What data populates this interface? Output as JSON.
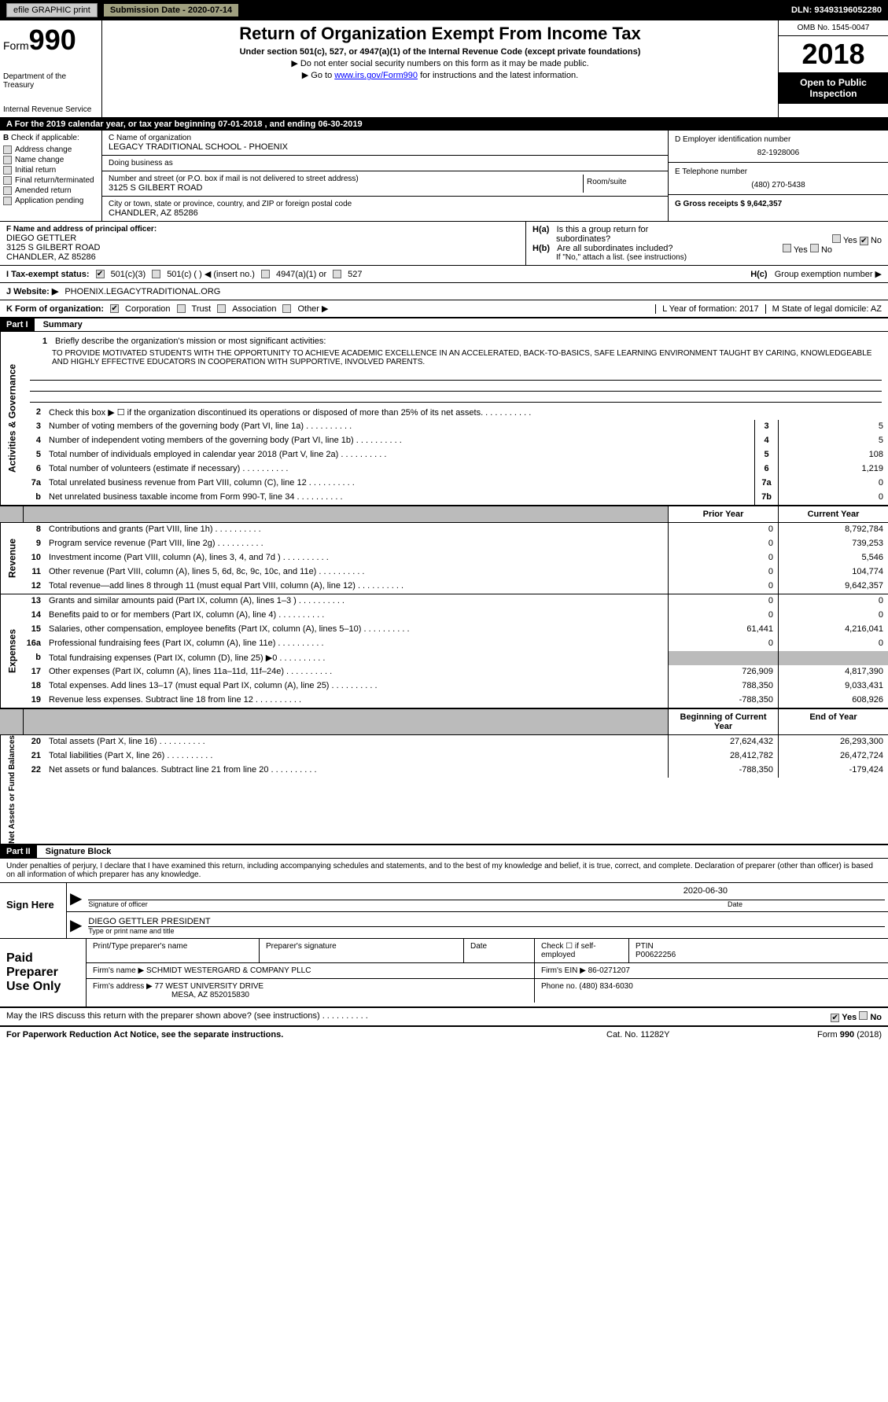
{
  "topbar": {
    "efile": "efile GRAPHIC print",
    "sub_label": "Submission Date - 2020-07-14",
    "dln": "DLN: 93493196052280"
  },
  "header": {
    "form_prefix": "Form",
    "form_num": "990",
    "dept": "Department of the Treasury",
    "irs": "Internal Revenue Service",
    "title": "Return of Organization Exempt From Income Tax",
    "sub1": "Under section 501(c), 527, or 4947(a)(1) of the Internal Revenue Code (except private foundations)",
    "sub2": "▶ Do not enter social security numbers on this form as it may be made public.",
    "sub3_pre": "▶ Go to ",
    "sub3_link": "www.irs.gov/Form990",
    "sub3_post": " for instructions and the latest information.",
    "omb": "OMB No. 1545-0047",
    "year": "2018",
    "open1": "Open to Public",
    "open2": "Inspection"
  },
  "row_a": "A   For the 2019 calendar year, or tax year beginning 07-01-2018         , and ending 06-30-2019",
  "col_b": {
    "label": "Check if applicable:",
    "items": [
      "Address change",
      "Name change",
      "Initial return",
      "Final return/terminated",
      "Amended return",
      "Application pending"
    ]
  },
  "org": {
    "c_label": "C Name of organization",
    "name": "LEGACY TRADITIONAL SCHOOL - PHOENIX",
    "dba_label": "Doing business as",
    "addr_label": "Number and street (or P.O. box if mail is not delivered to street address)",
    "addr": "3125 S GILBERT ROAD",
    "room_label": "Room/suite",
    "city_label": "City or town, state or province, country, and ZIP or foreign postal code",
    "city": "CHANDLER, AZ  85286"
  },
  "right": {
    "d_label": "D Employer identification number",
    "ein": "82-1928006",
    "e_label": "E Telephone number",
    "phone": "(480) 270-5438",
    "g_label": "G Gross receipts $ 9,642,357"
  },
  "f": {
    "label": "F  Name and address of principal officer:",
    "name": "DIEGO GETTLER",
    "addr1": "3125 S GILBERT ROAD",
    "addr2": "CHANDLER, AZ  85286"
  },
  "h": {
    "ha": "H(a)",
    "ha_text": "Is this a group return for",
    "ha_text2": "subordinates?",
    "hb": "H(b)",
    "hb_text": "Are all subordinates included?",
    "hb_note": "If \"No,\" attach a list. (see instructions)",
    "hc": "H(c)",
    "hc_text": "Group exemption number ▶",
    "yes": "Yes",
    "no": "No"
  },
  "tax": {
    "i_label": "I     Tax-exempt status:",
    "c501c3": "501(c)(3)",
    "c501c": "501(c) (  ) ◀ (insert no.)",
    "c4947": "4947(a)(1) or",
    "c527": "527",
    "j_label": "J   Website: ▶",
    "website": "PHOENIX.LEGACYTRADITIONAL.ORG"
  },
  "k": {
    "label": "K Form of organization:",
    "corp": "Corporation",
    "trust": "Trust",
    "assoc": "Association",
    "other": "Other ▶",
    "l_label": "L Year of formation: 2017",
    "m_label": "M State of legal domicile: AZ"
  },
  "part1": {
    "hdr": "Part I",
    "title": "Summary"
  },
  "mission": {
    "label": "Briefly describe the organization's mission or most significant activities:",
    "text": "TO PROVIDE MOTIVATED STUDENTS WITH THE OPPORTUNITY TO ACHIEVE ACADEMIC EXCELLENCE IN AN ACCELERATED, BACK-TO-BASICS, SAFE LEARNING ENVIRONMENT TAUGHT BY CARING, KNOWLEDGEABLE AND HIGHLY EFFECTIVE EDUCATORS IN COOPERATION WITH SUPPORTIVE, INVOLVED PARENTS."
  },
  "gov_lines": [
    {
      "n": "2",
      "t": "Check this box ▶ ☐  if the organization discontinued its operations or disposed of more than 25% of its net assets.",
      "box": "",
      "v": ""
    },
    {
      "n": "3",
      "t": "Number of voting members of the governing body (Part VI, line 1a)",
      "box": "3",
      "v": "5"
    },
    {
      "n": "4",
      "t": "Number of independent voting members of the governing body (Part VI, line 1b)",
      "box": "4",
      "v": "5"
    },
    {
      "n": "5",
      "t": "Total number of individuals employed in calendar year 2018 (Part V, line 2a)",
      "box": "5",
      "v": "108"
    },
    {
      "n": "6",
      "t": "Total number of volunteers (estimate if necessary)",
      "box": "6",
      "v": "1,219"
    },
    {
      "n": "7a",
      "t": "Total unrelated business revenue from Part VIII, column (C), line 12",
      "box": "7a",
      "v": "0"
    },
    {
      "n": "b",
      "t": "Net unrelated business taxable income from Form 990-T, line 34",
      "box": "7b",
      "v": "0"
    }
  ],
  "col_hdrs": {
    "prior": "Prior Year",
    "current": "Current Year"
  },
  "rev_lines": [
    {
      "n": "8",
      "t": "Contributions and grants (Part VIII, line 1h)",
      "p": "0",
      "c": "8,792,784"
    },
    {
      "n": "9",
      "t": "Program service revenue (Part VIII, line 2g)",
      "p": "0",
      "c": "739,253"
    },
    {
      "n": "10",
      "t": "Investment income (Part VIII, column (A), lines 3, 4, and 7d )",
      "p": "0",
      "c": "5,546"
    },
    {
      "n": "11",
      "t": "Other revenue (Part VIII, column (A), lines 5, 6d, 8c, 9c, 10c, and 11e)",
      "p": "0",
      "c": "104,774"
    },
    {
      "n": "12",
      "t": "Total revenue—add lines 8 through 11 (must equal Part VIII, column (A), line 12)",
      "p": "0",
      "c": "9,642,357"
    }
  ],
  "exp_lines": [
    {
      "n": "13",
      "t": "Grants and similar amounts paid (Part IX, column (A), lines 1–3 )",
      "p": "0",
      "c": "0"
    },
    {
      "n": "14",
      "t": "Benefits paid to or for members (Part IX, column (A), line 4)",
      "p": "0",
      "c": "0"
    },
    {
      "n": "15",
      "t": "Salaries, other compensation, employee benefits (Part IX, column (A), lines 5–10)",
      "p": "61,441",
      "c": "4,216,041"
    },
    {
      "n": "16a",
      "t": "Professional fundraising fees (Part IX, column (A), line 11e)",
      "p": "0",
      "c": "0"
    },
    {
      "n": "b",
      "t": "Total fundraising expenses (Part IX, column (D), line 25) ▶0",
      "p": "",
      "c": "",
      "grey": true
    },
    {
      "n": "17",
      "t": "Other expenses (Part IX, column (A), lines 11a–11d, 11f–24e)",
      "p": "726,909",
      "c": "4,817,390"
    },
    {
      "n": "18",
      "t": "Total expenses. Add lines 13–17 (must equal Part IX, column (A), line 25)",
      "p": "788,350",
      "c": "9,033,431"
    },
    {
      "n": "19",
      "t": "Revenue less expenses. Subtract line 18 from line 12",
      "p": "-788,350",
      "c": "608,926"
    }
  ],
  "net_hdrs": {
    "begin": "Beginning of Current Year",
    "end": "End of Year"
  },
  "net_lines": [
    {
      "n": "20",
      "t": "Total assets (Part X, line 16)",
      "p": "27,624,432",
      "c": "26,293,300"
    },
    {
      "n": "21",
      "t": "Total liabilities (Part X, line 26)",
      "p": "28,412,782",
      "c": "26,472,724"
    },
    {
      "n": "22",
      "t": "Net assets or fund balances. Subtract line 21 from line 20",
      "p": "-788,350",
      "c": "-179,424"
    }
  ],
  "part2": {
    "hdr": "Part II",
    "title": "Signature Block"
  },
  "penalty": "Under penalties of perjury, I declare that I have examined this return, including accompanying schedules and statements, and to the best of my knowledge and belief, it is true, correct, and complete. Declaration of preparer (other than officer) is based on all information of which preparer has any knowledge.",
  "sign": {
    "label": "Sign Here",
    "sig_of": "Signature of officer",
    "date": "2020-06-30",
    "date_label": "Date",
    "name": "DIEGO GETTLER  PRESIDENT",
    "name_label": "Type or print name and title"
  },
  "prep": {
    "label": "Paid Preparer Use Only",
    "print_label": "Print/Type preparer's name",
    "sig_label": "Preparer's signature",
    "date_label": "Date",
    "check_label": "Check ☐ if self-employed",
    "ptin_label": "PTIN",
    "ptin": "P00622256",
    "firm_name_label": "Firm's name    ▶",
    "firm_name": "SCHMIDT WESTERGARD & COMPANY PLLC",
    "firm_ein_label": "Firm's EIN ▶",
    "firm_ein": "86-0271207",
    "firm_addr_label": "Firm's address ▶",
    "firm_addr": "77 WEST UNIVERSITY DRIVE",
    "firm_city": "MESA, AZ  852015830",
    "phone_label": "Phone no. (480) 834-6030"
  },
  "may": "May the IRS discuss this return with the preparer shown above? (see instructions)",
  "footer": {
    "left": "For Paperwork Reduction Act Notice, see the separate instructions.",
    "mid": "Cat. No. 11282Y",
    "right": "Form 990 (2018)"
  },
  "vert": {
    "gov": "Activities & Governance",
    "rev": "Revenue",
    "exp": "Expenses",
    "net": "Net Assets or Fund Balances"
  }
}
